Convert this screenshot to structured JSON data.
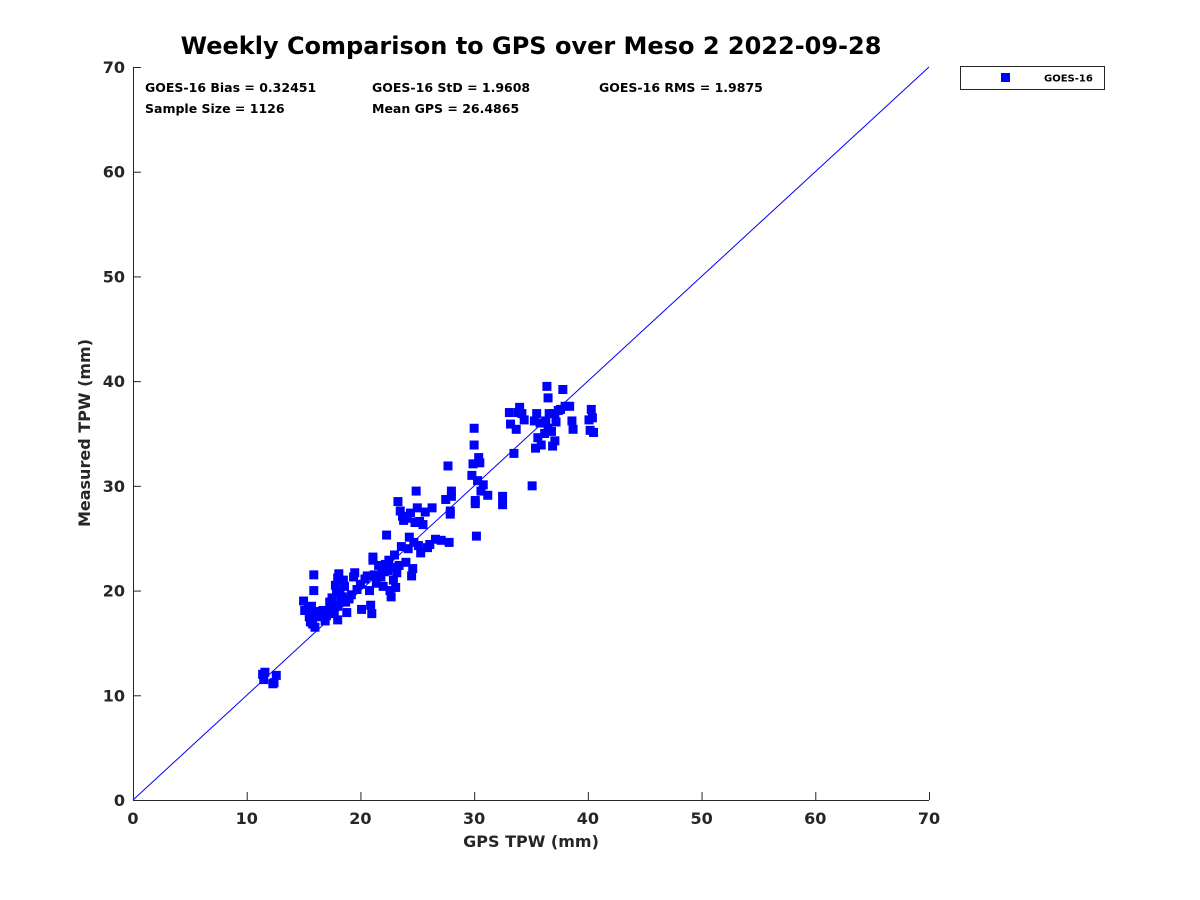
{
  "chart_data": {
    "type": "scatter",
    "title": "Weekly Comparison to GPS over Meso 2 2022-09-28",
    "xlabel": "GPS TPW (mm)",
    "ylabel": "Measured TPW (mm)",
    "xlim": [
      0,
      70
    ],
    "ylim": [
      0,
      70
    ],
    "xticks": [
      "0",
      "10",
      "20",
      "30",
      "40",
      "50",
      "60",
      "70"
    ],
    "yticks": [
      "0",
      "10",
      "20",
      "30",
      "40",
      "50",
      "60",
      "70"
    ],
    "grid": false,
    "legend_position": "outside-top-right",
    "reference_line": {
      "kind": "1:1",
      "from": [
        0,
        0
      ],
      "to": [
        70,
        70
      ],
      "color": "#0000ff"
    },
    "stats": {
      "bias": "GOES-16 Bias = 0.32451",
      "std": "GOES-16 StD = 1.9608",
      "rms": "GOES-16 RMS = 1.9875",
      "sample": "Sample Size = 1126",
      "mean": "Mean GPS = 26.4865"
    },
    "series": [
      {
        "name": "GOES-16",
        "color": "#0000ff",
        "marker": "square",
        "points": [
          [
            11.4,
            12.0
          ],
          [
            11.5,
            11.5
          ],
          [
            11.6,
            12.2
          ],
          [
            12.3,
            11.1
          ],
          [
            12.4,
            11.2
          ],
          [
            12.6,
            11.9
          ],
          [
            15.0,
            19.0
          ],
          [
            15.1,
            18.1
          ],
          [
            15.4,
            18.3
          ],
          [
            15.5,
            17.5
          ],
          [
            15.6,
            17.0
          ],
          [
            15.7,
            18.5
          ],
          [
            15.8,
            16.8
          ],
          [
            15.9,
            21.5
          ],
          [
            15.9,
            20.0
          ],
          [
            16.0,
            17.6
          ],
          [
            16.0,
            16.5
          ],
          [
            16.2,
            18.0
          ],
          [
            16.5,
            17.5
          ],
          [
            16.7,
            18.1
          ],
          [
            16.9,
            17.1
          ],
          [
            17.0,
            17.6
          ],
          [
            17.3,
            18.9
          ],
          [
            17.4,
            18.3
          ],
          [
            17.5,
            19.3
          ],
          [
            17.7,
            17.8
          ],
          [
            17.8,
            20.5
          ],
          [
            17.9,
            19.8
          ],
          [
            18.0,
            21.2
          ],
          [
            18.0,
            18.5
          ],
          [
            18.0,
            17.2
          ],
          [
            18.1,
            21.6
          ],
          [
            18.2,
            20.0
          ],
          [
            18.3,
            19.0
          ],
          [
            18.4,
            19.4
          ],
          [
            18.5,
            21.0
          ],
          [
            18.6,
            20.4
          ],
          [
            18.7,
            18.9
          ],
          [
            18.8,
            17.9
          ],
          [
            19.0,
            19.2
          ],
          [
            19.2,
            19.6
          ],
          [
            19.5,
            21.7
          ],
          [
            19.4,
            21.3
          ],
          [
            19.7,
            20.1
          ],
          [
            20.0,
            20.6
          ],
          [
            20.1,
            18.2
          ],
          [
            20.4,
            21.1
          ],
          [
            20.6,
            21.4
          ],
          [
            20.8,
            20.0
          ],
          [
            20.9,
            18.6
          ],
          [
            21.0,
            17.8
          ],
          [
            21.1,
            22.9
          ],
          [
            21.1,
            23.2
          ],
          [
            21.2,
            21.5
          ],
          [
            21.4,
            20.7
          ],
          [
            21.6,
            22.4
          ],
          [
            21.8,
            21.3
          ],
          [
            21.9,
            22.0
          ],
          [
            22.0,
            20.4
          ],
          [
            22.1,
            21.8
          ],
          [
            22.2,
            22.5
          ],
          [
            22.3,
            25.3
          ],
          [
            22.4,
            21.9
          ],
          [
            22.5,
            22.9
          ],
          [
            22.6,
            20.0
          ],
          [
            22.7,
            19.4
          ],
          [
            22.8,
            22.2
          ],
          [
            22.9,
            21.0
          ],
          [
            23.0,
            23.4
          ],
          [
            23.1,
            20.3
          ],
          [
            23.2,
            21.7
          ],
          [
            23.3,
            28.5
          ],
          [
            23.4,
            22.4
          ],
          [
            23.5,
            27.6
          ],
          [
            23.6,
            24.2
          ],
          [
            23.7,
            27.1
          ],
          [
            23.8,
            26.7
          ],
          [
            24.0,
            22.7
          ],
          [
            24.1,
            26.9
          ],
          [
            24.2,
            24.0
          ],
          [
            24.3,
            25.1
          ],
          [
            24.4,
            27.4
          ],
          [
            24.5,
            21.4
          ],
          [
            24.6,
            22.1
          ],
          [
            24.7,
            24.6
          ],
          [
            24.8,
            26.5
          ],
          [
            24.9,
            29.5
          ],
          [
            25.0,
            27.9
          ],
          [
            25.1,
            24.3
          ],
          [
            25.2,
            26.6
          ],
          [
            25.3,
            23.6
          ],
          [
            25.5,
            26.3
          ],
          [
            25.7,
            27.5
          ],
          [
            25.9,
            24.1
          ],
          [
            26.1,
            24.4
          ],
          [
            26.3,
            27.9
          ],
          [
            26.6,
            24.9
          ],
          [
            27.1,
            24.8
          ],
          [
            27.5,
            28.7
          ],
          [
            27.7,
            31.9
          ],
          [
            27.8,
            24.6
          ],
          [
            27.9,
            27.3
          ],
          [
            27.9,
            27.6
          ],
          [
            28.0,
            29.0
          ],
          [
            28.0,
            29.5
          ],
          [
            29.8,
            31.0
          ],
          [
            29.9,
            32.1
          ],
          [
            30.0,
            33.9
          ],
          [
            30.0,
            35.5
          ],
          [
            30.1,
            28.6
          ],
          [
            30.1,
            28.3
          ],
          [
            30.2,
            25.2
          ],
          [
            30.3,
            30.5
          ],
          [
            30.4,
            32.7
          ],
          [
            30.5,
            32.2
          ],
          [
            30.6,
            29.5
          ],
          [
            30.8,
            30.1
          ],
          [
            31.2,
            29.1
          ],
          [
            32.5,
            29.0
          ],
          [
            32.5,
            28.2
          ],
          [
            33.1,
            37.0
          ],
          [
            33.2,
            35.9
          ],
          [
            33.5,
            33.1
          ],
          [
            33.7,
            35.4
          ],
          [
            33.9,
            37.0
          ],
          [
            34.0,
            37.5
          ],
          [
            34.2,
            36.9
          ],
          [
            34.4,
            36.3
          ],
          [
            35.1,
            30.0
          ],
          [
            35.3,
            36.2
          ],
          [
            35.4,
            33.6
          ],
          [
            35.5,
            36.9
          ],
          [
            35.6,
            34.6
          ],
          [
            35.8,
            36.0
          ],
          [
            35.9,
            33.9
          ],
          [
            36.2,
            35.0
          ],
          [
            36.3,
            36.2
          ],
          [
            36.4,
            39.5
          ],
          [
            36.5,
            38.4
          ],
          [
            36.5,
            35.5
          ],
          [
            36.6,
            36.9
          ],
          [
            36.8,
            35.2
          ],
          [
            36.9,
            33.8
          ],
          [
            37.1,
            34.3
          ],
          [
            37.1,
            36.9
          ],
          [
            37.2,
            36.1
          ],
          [
            37.4,
            37.2
          ],
          [
            37.6,
            37.3
          ],
          [
            37.8,
            39.2
          ],
          [
            38.0,
            37.6
          ],
          [
            38.4,
            37.6
          ],
          [
            38.6,
            36.2
          ],
          [
            38.7,
            35.4
          ],
          [
            40.1,
            36.3
          ],
          [
            40.2,
            35.3
          ],
          [
            40.3,
            37.3
          ],
          [
            40.4,
            36.5
          ],
          [
            40.5,
            35.1
          ]
        ]
      }
    ]
  }
}
